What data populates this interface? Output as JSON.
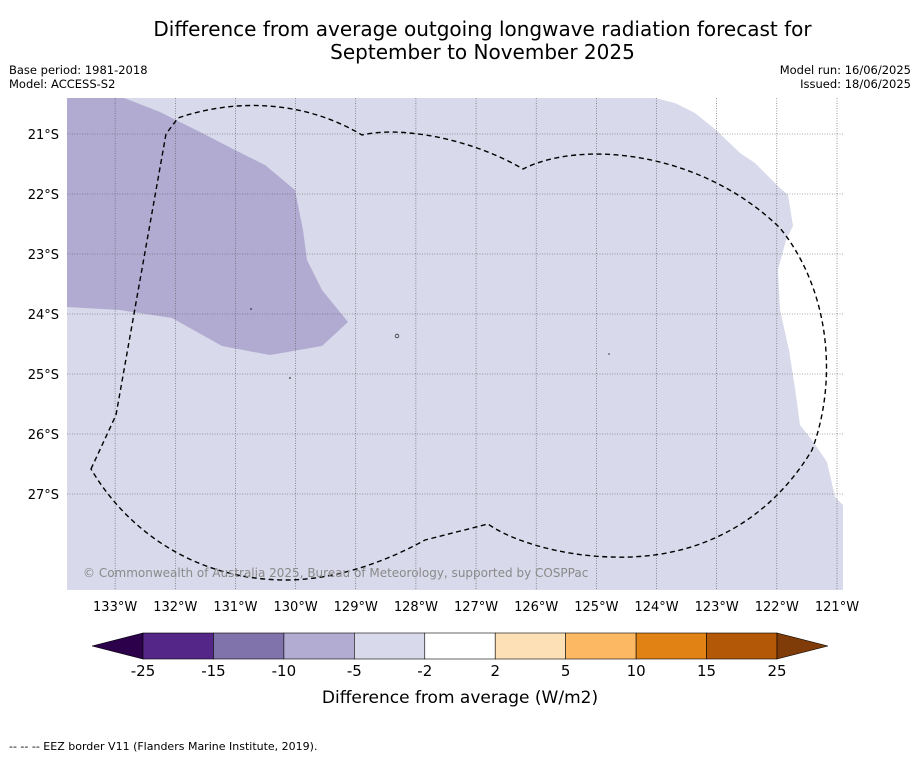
{
  "title_line1": "Difference from average outgoing longwave radiation forecast for",
  "title_line2": "September to November 2025",
  "base_period": "Base period: 1981-2018",
  "model": "Model: ACCESS-S2",
  "model_run": "Model run: 16/06/2025",
  "issued": "Issued: 18/06/2025",
  "copyright": "© Commonwealth of Australia 2025, Bureau of Meteorology, supported by COSPPac",
  "footer_note": "--  --  -- EEZ border V11 (Flanders Marine Institute, 2019).",
  "map": {
    "lon_range": [
      -133.8,
      -120.9
    ],
    "lat_range": [
      -28.6,
      -20.4
    ],
    "lat_ticks": [
      "21°S",
      "22°S",
      "23°S",
      "24°S",
      "25°S",
      "26°S",
      "27°S"
    ],
    "lon_ticks": [
      "133°W",
      "132°W",
      "131°W",
      "130°W",
      "129°W",
      "128°W",
      "127°W",
      "126°W",
      "125°W",
      "124°W",
      "123°W",
      "122°W",
      "121°W"
    ],
    "gridlines": true,
    "colors": {
      "class_-10_-5": "#b1abd2",
      "class_-5_-2": "#d8d9ea",
      "class_-2_2": "#ffffff",
      "eez_border": "#000000"
    }
  },
  "legend": {
    "title": "Difference from average (W/m2)",
    "tick_labels": [
      "-25",
      "-15",
      "-10",
      "-5",
      "-2",
      "2",
      "5",
      "10",
      "15",
      "25"
    ],
    "colors": [
      "#2d004b",
      "#542688",
      "#8073ac",
      "#b2abd2",
      "#d8daeb",
      "#ffffff",
      "#fee0b6",
      "#fdb863",
      "#e08214",
      "#b35806",
      "#7f3b08"
    ]
  }
}
